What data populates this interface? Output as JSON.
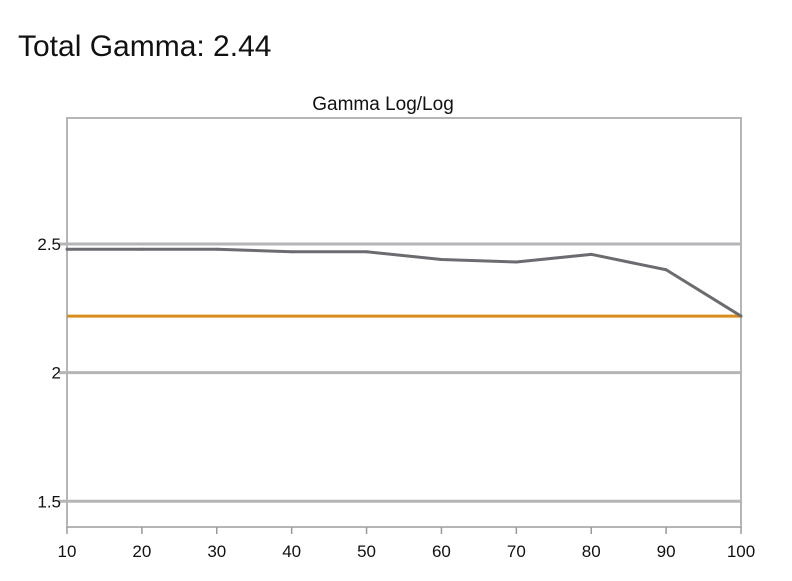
{
  "header": {
    "title": "Total Gamma: 2.44"
  },
  "chart_data": {
    "type": "line",
    "title": "Gamma Log/Log",
    "xlabel": "",
    "ylabel": "",
    "x": [
      10,
      20,
      30,
      40,
      50,
      60,
      70,
      80,
      90,
      100
    ],
    "series": [
      {
        "values": [
          2.48,
          2.48,
          2.48,
          2.47,
          2.47,
          2.44,
          2.43,
          2.46,
          2.4,
          2.22
        ]
      }
    ],
    "reference_lines": [
      {
        "y": 2.22,
        "color": "#d98c1e"
      }
    ],
    "xlim": [
      10,
      100
    ],
    "ylim": [
      1.4,
      2.99
    ],
    "x_ticks": [
      "10",
      "20",
      "30",
      "40",
      "50",
      "60",
      "70",
      "80",
      "90",
      "100"
    ],
    "y_ticks": [
      "1.5",
      "2",
      "2.5"
    ],
    "y_tick_values": [
      1.5,
      2.0,
      2.5
    ],
    "grid": "horizontal",
    "legend": "none",
    "colors": {
      "series": "#6b6b70",
      "grid": "#b5b5b8",
      "axis": "#9a9a9d",
      "reference": "#d98c1e"
    }
  }
}
